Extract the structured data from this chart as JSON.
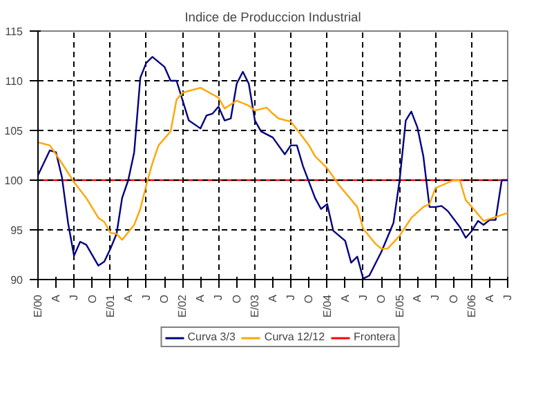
{
  "chart_data": {
    "type": "line",
    "title": "Indice de Produccion Industrial",
    "xlim": [
      "2000-01",
      "2006-07"
    ],
    "ylim": [
      90,
      115
    ],
    "xticks": [
      {
        "value": "2000-01",
        "label": "E/00"
      },
      {
        "value": "2000-04",
        "label": "A"
      },
      {
        "value": "2000-07",
        "label": "J"
      },
      {
        "value": "2000-10",
        "label": "O"
      },
      {
        "value": "2001-01",
        "label": "E/01"
      },
      {
        "value": "2001-04",
        "label": "A"
      },
      {
        "value": "2001-07",
        "label": "J"
      },
      {
        "value": "2001-10",
        "label": "O"
      },
      {
        "value": "2002-01",
        "label": "E/02"
      },
      {
        "value": "2002-04",
        "label": "A"
      },
      {
        "value": "2002-07",
        "label": "J"
      },
      {
        "value": "2002-10",
        "label": "O"
      },
      {
        "value": "2003-01",
        "label": "E/03"
      },
      {
        "value": "2003-04",
        "label": "A"
      },
      {
        "value": "2003-07",
        "label": "J"
      },
      {
        "value": "2003-10",
        "label": "O"
      },
      {
        "value": "2004-01",
        "label": "E/04"
      },
      {
        "value": "2004-04",
        "label": "A"
      },
      {
        "value": "2004-07",
        "label": "J"
      },
      {
        "value": "2004-10",
        "label": "O"
      },
      {
        "value": "2005-01",
        "label": "E/05"
      },
      {
        "value": "2005-04",
        "label": "A"
      },
      {
        "value": "2005-07",
        "label": "J"
      },
      {
        "value": "2005-10",
        "label": "O"
      },
      {
        "value": "2006-01",
        "label": "E/06"
      },
      {
        "value": "2006-04",
        "label": "A"
      },
      {
        "value": "2006-07",
        "label": "J"
      }
    ],
    "yticks": [
      90,
      95,
      100,
      105,
      110,
      115
    ],
    "grid": true,
    "legend": "bottom",
    "line_style": "solid",
    "series": [
      {
        "name": "Curva 3/3",
        "color": "#000080",
        "x": [
          "2000-01",
          "2000-03",
          "2000-04",
          "2000-05",
          "2000-06",
          "2000-07",
          "2000-08",
          "2000-09",
          "2000-11",
          "2000-12",
          "2001-01",
          "2001-02",
          "2001-03",
          "2001-04",
          "2001-05",
          "2001-06",
          "2001-07",
          "2001-08",
          "2001-10",
          "2001-11",
          "2001-12",
          "2002-02",
          "2002-04",
          "2002-05",
          "2002-06",
          "2002-07",
          "2002-08",
          "2002-09",
          "2002-10",
          "2002-11",
          "2002-12",
          "2003-01",
          "2003-02",
          "2003-04",
          "2003-06",
          "2003-07",
          "2003-08",
          "2003-09",
          "2003-11",
          "2003-12",
          "2004-01",
          "2004-02",
          "2004-04",
          "2004-05",
          "2004-06",
          "2004-07",
          "2004-08",
          "2004-10",
          "2004-12",
          "2005-01",
          "2005-02",
          "2005-03",
          "2005-04",
          "2005-05",
          "2005-06",
          "2005-07",
          "2005-08",
          "2005-09",
          "2005-11",
          "2005-12",
          "2006-01",
          "2006-02",
          "2006-03",
          "2006-04",
          "2006-05",
          "2006-06",
          "2006-07"
        ],
        "values": [
          100.5,
          103,
          102.8,
          100.3,
          95.7,
          92.4,
          93.8,
          93.5,
          91.4,
          91.8,
          93.1,
          94.6,
          98.2,
          100,
          102.8,
          110.3,
          111.8,
          112.4,
          111.4,
          110,
          110,
          106,
          105.2,
          106.5,
          106.7,
          107.4,
          106,
          106.2,
          109.7,
          110.9,
          109.7,
          106,
          104.9,
          104.3,
          102.6,
          103.5,
          103.5,
          101.4,
          98.2,
          97.1,
          97.6,
          94.9,
          93.9,
          91.7,
          92.3,
          90.1,
          90.4,
          92.8,
          95.7,
          100,
          106,
          106.9,
          105.3,
          102.4,
          97.3,
          97.3,
          97.4,
          96.9,
          95.3,
          94.2,
          94.9,
          95.9,
          95.5,
          96,
          96,
          100,
          100
        ]
      },
      {
        "name": "Curva 12/12",
        "color": "#ffa500",
        "x": [
          "2000-01",
          "2000-03",
          "2000-05",
          "2000-07",
          "2000-09",
          "2000-11",
          "2000-12",
          "2001-01",
          "2001-02",
          "2001-03",
          "2001-05",
          "2001-06",
          "2001-07",
          "2001-08",
          "2001-09",
          "2001-11",
          "2001-12",
          "2002-01",
          "2002-04",
          "2002-07",
          "2002-08",
          "2002-10",
          "2002-12",
          "2003-01",
          "2003-03",
          "2003-04",
          "2003-05",
          "2003-07",
          "2003-08",
          "2003-10",
          "2003-11",
          "2004-01",
          "2004-03",
          "2004-06",
          "2004-07",
          "2004-09",
          "2004-10",
          "2004-11",
          "2005-01",
          "2005-03",
          "2005-05",
          "2005-06",
          "2005-07",
          "2005-10",
          "2005-11",
          "2005-12",
          "2006-01",
          "2006-03",
          "2006-05",
          "2006-06",
          "2006-07"
        ],
        "values": [
          103.8,
          103.5,
          101.7,
          99.8,
          98.2,
          96.2,
          95.8,
          94.7,
          94.6,
          94,
          95.5,
          97.1,
          99.5,
          101.7,
          103.5,
          104.9,
          108.1,
          108.8,
          109.3,
          108.3,
          107.2,
          108,
          107.5,
          107,
          107.3,
          106.7,
          106.2,
          105.9,
          105.1,
          103.5,
          102.4,
          101.2,
          99.5,
          97.3,
          95.1,
          93.6,
          93.1,
          93.1,
          94.4,
          96.2,
          97.3,
          97.6,
          99.2,
          100,
          100,
          98,
          97.3,
          95.9,
          96.3,
          96.5,
          96.7
        ]
      }
    ],
    "ref_lines": [
      {
        "axis": "y",
        "value": 100,
        "label": "Frontera",
        "color": "#ff0000"
      }
    ]
  }
}
